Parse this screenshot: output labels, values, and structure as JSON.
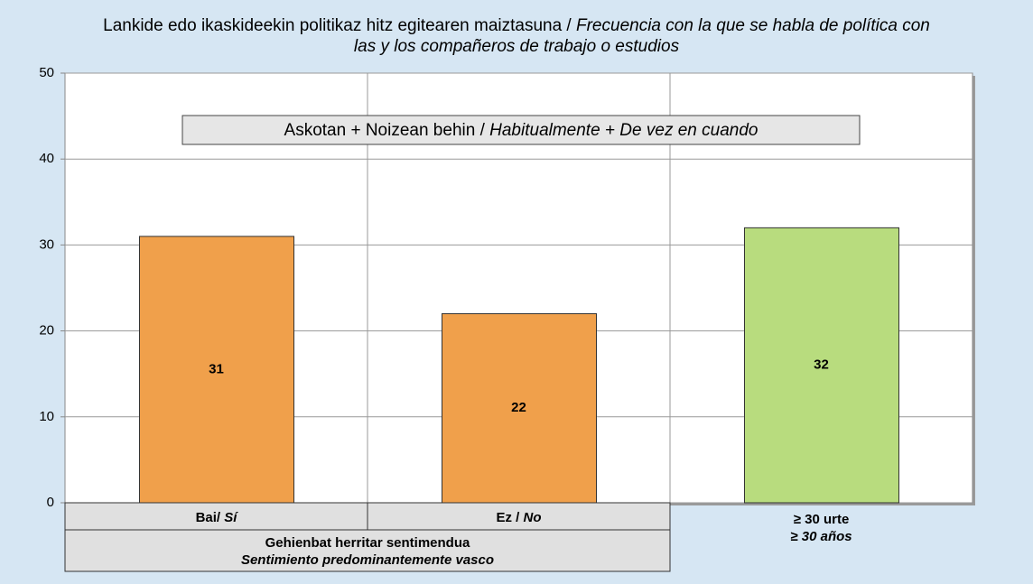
{
  "chart_data": {
    "type": "bar",
    "title": {
      "eu": "Lankide edo ikaskideekin politikaz hitz egitearen maiztasuna / ",
      "es": "Frecuencia con la que se habla de política con las y los compañeros de trabajo o estudios"
    },
    "annotation": {
      "eu": "Askotan + Noizean behin / ",
      "es": "Habitualmente + De vez en cuando"
    },
    "categories": [
      {
        "eu": "Bai/ ",
        "es": "Sí"
      },
      {
        "eu": "Ez / ",
        "es": "No"
      },
      {
        "eu": "≥ 30 urte",
        "es": "≥ 30 años"
      }
    ],
    "group_label": {
      "eu": "Gehienbat herritar sentimendua",
      "es": "Sentimiento predominantemente vasco"
    },
    "values": [
      31,
      22,
      32
    ],
    "colors": [
      "#f0a04b",
      "#f0a04b",
      "#b8dc7e"
    ],
    "ylim": [
      0,
      50
    ],
    "yticks": [
      0,
      10,
      20,
      30,
      40,
      50
    ],
    "grid": true
  }
}
